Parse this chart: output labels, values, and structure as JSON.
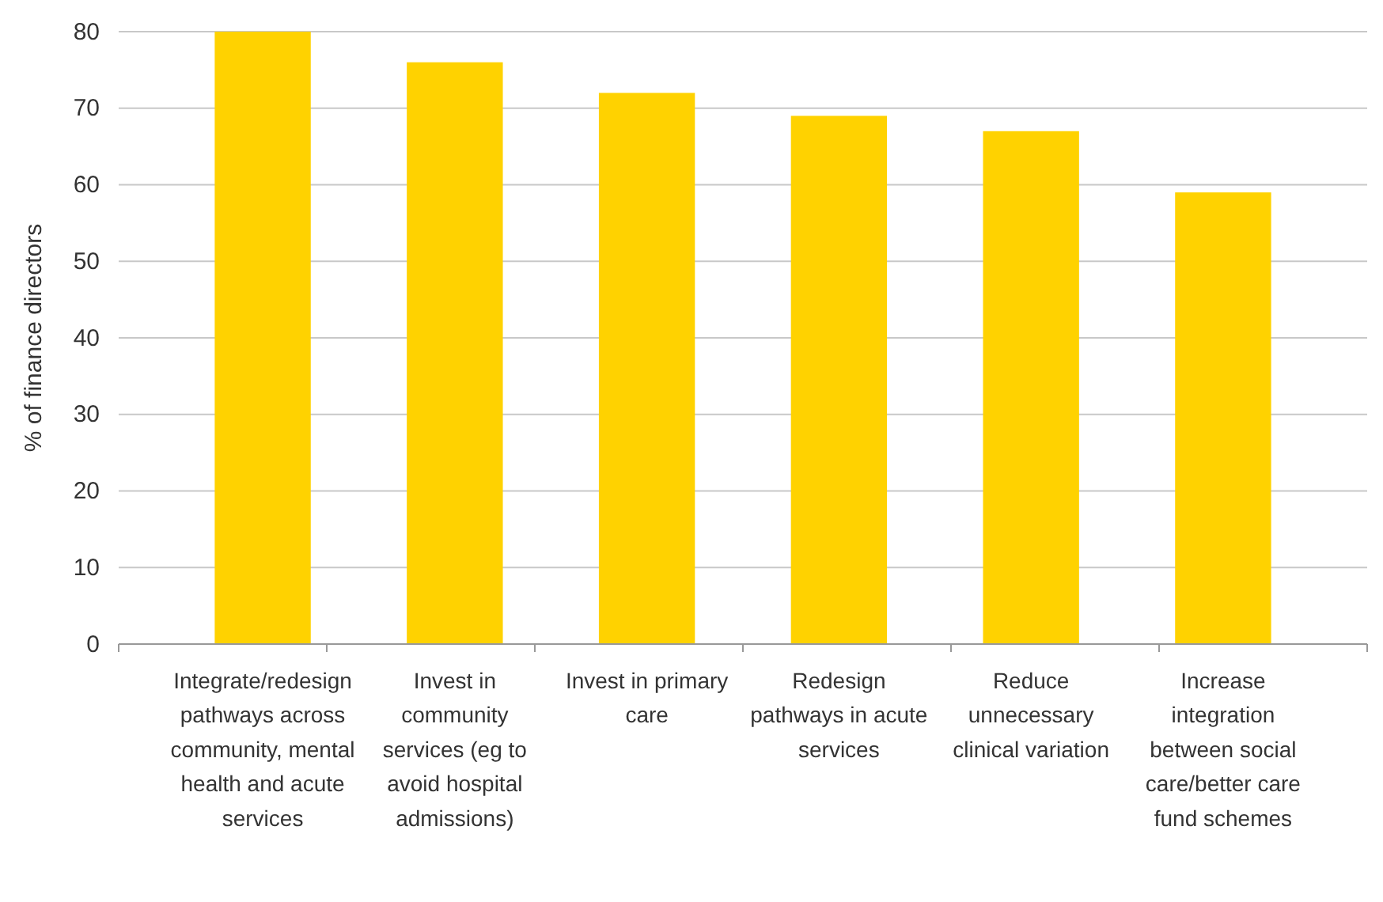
{
  "chart_data": {
    "type": "bar",
    "ylabel": "% of finance directors",
    "categories": [
      "Integrate/redesign pathways across community, mental health and acute services",
      "Invest in community services (eg to avoid hospital admissions)",
      "Invest in primary care",
      "Redesign pathways in acute services",
      "Reduce unnecessary clinical variation",
      "Increase integration between social care/better care fund schemes"
    ],
    "values": [
      80,
      76,
      72,
      69,
      67,
      59
    ],
    "color": "#ffd200",
    "ylim": [
      0,
      80
    ],
    "yticks": [
      0,
      10,
      20,
      30,
      40,
      50,
      60,
      70,
      80
    ],
    "grid": "y"
  }
}
